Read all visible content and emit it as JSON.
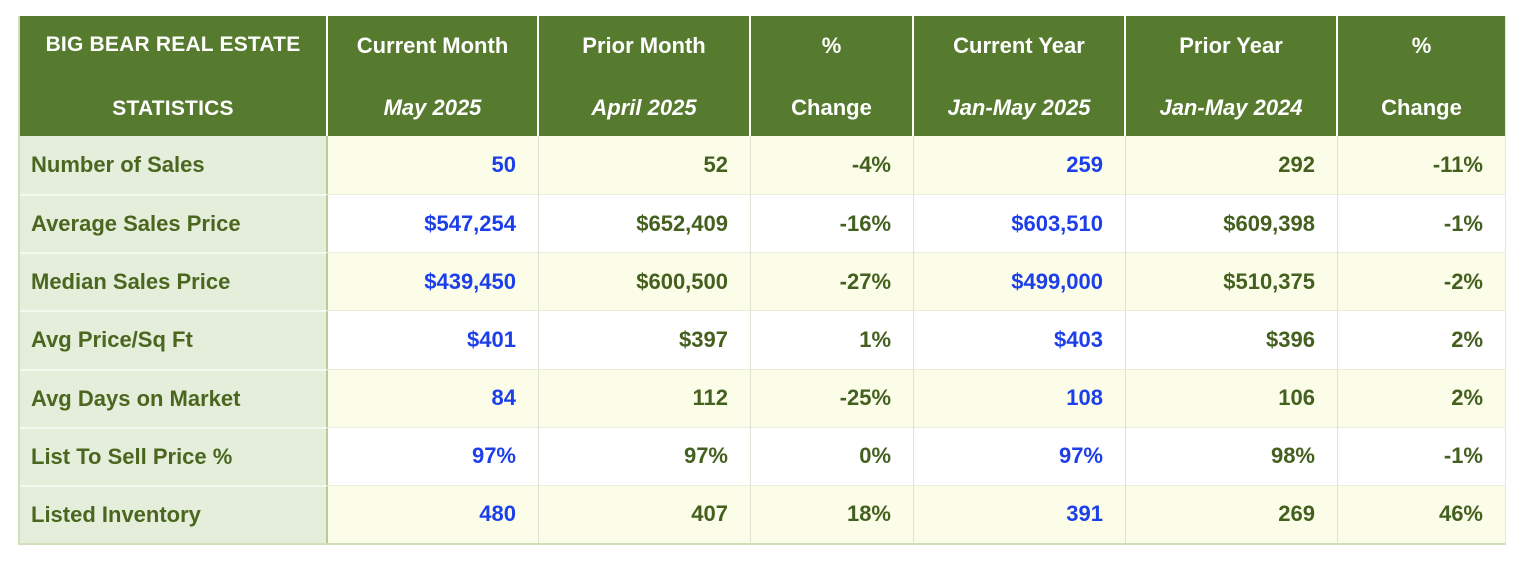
{
  "table": {
    "title_lines": [
      "BIG BEAR REAL ESTATE",
      "STATISTICS"
    ],
    "columns": [
      {
        "label": "Current Month",
        "sublabel": "May 2025",
        "sublabel_italic": true
      },
      {
        "label": "Prior Month",
        "sublabel": "April 2025",
        "sublabel_italic": true
      },
      {
        "label": "%",
        "sublabel": "Change",
        "sublabel_italic": false
      },
      {
        "label": "Current Year",
        "sublabel": "Jan-May 2025",
        "sublabel_italic": true
      },
      {
        "label": "Prior Year",
        "sublabel": "Jan-May 2024",
        "sublabel_italic": true
      },
      {
        "label": "%",
        "sublabel": "Change",
        "sublabel_italic": false
      }
    ],
    "rows": [
      {
        "label": "Number of Sales",
        "values": [
          "50",
          "52",
          "-4%",
          "259",
          "292",
          "-11%"
        ]
      },
      {
        "label": "Average Sales Price",
        "values": [
          "$547,254",
          "$652,409",
          "-16%",
          "$603,510",
          "$609,398",
          "-1%"
        ]
      },
      {
        "label": "Median Sales Price",
        "values": [
          "$439,450",
          "$600,500",
          "-27%",
          "$499,000",
          "$510,375",
          "-2%"
        ]
      },
      {
        "label": "Avg Price/Sq Ft",
        "values": [
          "$401",
          "$397",
          "1%",
          "$403",
          "$396",
          "2%"
        ]
      },
      {
        "label": "Avg Days on Market",
        "values": [
          "84",
          "112",
          "-25%",
          "108",
          "106",
          "2%"
        ]
      },
      {
        "label": "List To Sell Price %",
        "values": [
          "97%",
          "97%",
          "0%",
          "97%",
          "98%",
          "-1%"
        ]
      },
      {
        "label": "Listed Inventory",
        "values": [
          "480",
          "407",
          "18%",
          "391",
          "269",
          "46%"
        ]
      }
    ],
    "highlighted_value_columns": [
      0,
      3
    ],
    "colors": {
      "header_bg": "#567a2e",
      "header_text": "#ffffff",
      "label_col_bg": "#e4eeda",
      "label_text": "#4a661f",
      "row_odd_bg": "#fbfde9",
      "row_even_bg": "#ffffff",
      "value_green": "#44601e",
      "value_blue": "#1d3fea"
    }
  }
}
